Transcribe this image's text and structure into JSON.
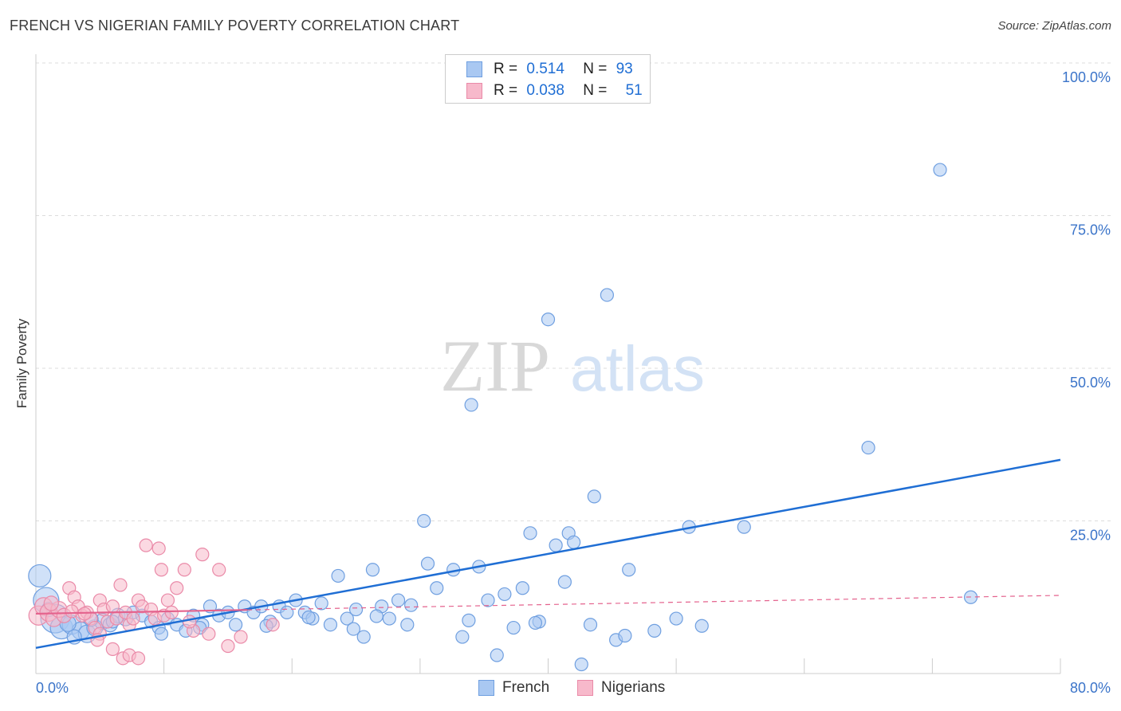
{
  "header": {
    "title": "FRENCH VS NIGERIAN FAMILY POVERTY CORRELATION CHART",
    "source": "Source: ZipAtlas.com"
  },
  "watermark": {
    "zip": "ZIP",
    "atlas": "atlas"
  },
  "legend": {
    "french": {
      "r_label": "R =",
      "r_value": "0.514",
      "n_label": "N =",
      "n_value": "93"
    },
    "nigerians": {
      "r_label": "R =",
      "r_value": "0.038",
      "n_label": "N =",
      "n_value": "51"
    }
  },
  "bottom_legend": {
    "french": "French",
    "nigerians": "Nigerians"
  },
  "colors": {
    "french_fill": "#a9c8f2",
    "french_stroke": "#6f9fe0",
    "french_line": "#1f6ed4",
    "nigerian_fill": "#f7b9cb",
    "nigerian_stroke": "#ea8aa8",
    "nigerian_line": "#e4628d",
    "axis_label": "#3b74c9",
    "grid": "#dddddd"
  },
  "chart_data": {
    "type": "scatter",
    "title": "FRENCH VS NIGERIAN FAMILY POVERTY CORRELATION CHART",
    "xlabel": "",
    "ylabel": "Family Poverty",
    "xlim": [
      0,
      80
    ],
    "ylim": [
      0,
      100
    ],
    "x_tick_labels": [
      "0.0%",
      "80.0%"
    ],
    "y_tick_labels": [
      "100.0%",
      "75.0%",
      "50.0%",
      "25.0%"
    ],
    "y_ticks": [
      100,
      75,
      50,
      25
    ],
    "grid": true,
    "legend_position": "top-center",
    "series": [
      {
        "name": "French",
        "r": 0.514,
        "n": 93,
        "trend": {
          "x": [
            0,
            80
          ],
          "y": [
            4.2,
            35.0
          ]
        },
        "points": [
          [
            0.3,
            16.0,
            14
          ],
          [
            0.8,
            12.0,
            16
          ],
          [
            1.5,
            9.0,
            18
          ],
          [
            2.0,
            7.5,
            14
          ],
          [
            2.8,
            8.0,
            12
          ],
          [
            3.5,
            7.0,
            11
          ],
          [
            4.0,
            6.5,
            11
          ],
          [
            4.6,
            7.5,
            10
          ],
          [
            5.2,
            8.5,
            10
          ],
          [
            5.8,
            8.0,
            9
          ],
          [
            6.4,
            9.5,
            9
          ],
          [
            7.0,
            9.0,
            9
          ],
          [
            7.6,
            10.0,
            8
          ],
          [
            8.3,
            9.5,
            8
          ],
          [
            9.0,
            8.5,
            8
          ],
          [
            9.6,
            7.5,
            8
          ],
          [
            10.3,
            9.0,
            8
          ],
          [
            11.0,
            8.0,
            8
          ],
          [
            11.7,
            7.0,
            8
          ],
          [
            12.3,
            9.5,
            8
          ],
          [
            13.0,
            8.0,
            8
          ],
          [
            13.6,
            11.0,
            8
          ],
          [
            14.3,
            9.5,
            8
          ],
          [
            15.0,
            10.0,
            8
          ],
          [
            15.6,
            8.0,
            8
          ],
          [
            16.3,
            11.0,
            8
          ],
          [
            17.0,
            10.0,
            8
          ],
          [
            17.6,
            11.0,
            8
          ],
          [
            18.3,
            8.5,
            8
          ],
          [
            19.0,
            11.0,
            8
          ],
          [
            19.6,
            10.0,
            8
          ],
          [
            20.3,
            12.0,
            8
          ],
          [
            21.0,
            10.0,
            8
          ],
          [
            21.6,
            9.0,
            8
          ],
          [
            22.3,
            11.5,
            8
          ],
          [
            23.0,
            8.0,
            8
          ],
          [
            23.6,
            16.0,
            8
          ],
          [
            24.3,
            9.0,
            8
          ],
          [
            25.0,
            10.5,
            8
          ],
          [
            25.6,
            6.0,
            8
          ],
          [
            26.3,
            17.0,
            8
          ],
          [
            27.0,
            11.0,
            8
          ],
          [
            27.6,
            9.0,
            8
          ],
          [
            28.3,
            12.0,
            8
          ],
          [
            29.0,
            8.0,
            8
          ],
          [
            30.3,
            25.0,
            8
          ],
          [
            30.6,
            18.0,
            8
          ],
          [
            31.3,
            14.0,
            8
          ],
          [
            32.6,
            17.0,
            8
          ],
          [
            33.3,
            6.0,
            8
          ],
          [
            34.0,
            44.0,
            8
          ],
          [
            34.6,
            17.5,
            8
          ],
          [
            35.3,
            12.0,
            8
          ],
          [
            36.0,
            3.0,
            8
          ],
          [
            36.6,
            13.0,
            8
          ],
          [
            37.3,
            7.5,
            8
          ],
          [
            38.0,
            14.0,
            8
          ],
          [
            38.6,
            23.0,
            8
          ],
          [
            39.3,
            8.5,
            8
          ],
          [
            40.0,
            58.0,
            8
          ],
          [
            40.6,
            21.0,
            8
          ],
          [
            41.3,
            15.0,
            8
          ],
          [
            41.6,
            23.0,
            8
          ],
          [
            42.0,
            21.5,
            8
          ],
          [
            42.6,
            1.5,
            8
          ],
          [
            43.3,
            8.0,
            8
          ],
          [
            43.6,
            29.0,
            8
          ],
          [
            44.6,
            62.0,
            8
          ],
          [
            45.3,
            5.5,
            8
          ],
          [
            46.3,
            17.0,
            8
          ],
          [
            48.3,
            7.0,
            8
          ],
          [
            50.0,
            9.0,
            8
          ],
          [
            51.0,
            24.0,
            8
          ],
          [
            55.3,
            24.0,
            8
          ],
          [
            65.0,
            37.0,
            8
          ],
          [
            70.6,
            82.5,
            8
          ],
          [
            73.0,
            12.5,
            8
          ],
          [
            1.0,
            10.5,
            9
          ],
          [
            3.0,
            6.0,
            9
          ],
          [
            6.0,
            8.5,
            8
          ],
          [
            9.8,
            6.5,
            8
          ],
          [
            12.8,
            7.5,
            8
          ],
          [
            18.0,
            7.8,
            8
          ],
          [
            21.3,
            9.2,
            8
          ],
          [
            24.8,
            7.3,
            8
          ],
          [
            26.6,
            9.4,
            8
          ],
          [
            29.3,
            11.2,
            8
          ],
          [
            33.8,
            8.7,
            8
          ],
          [
            39.0,
            8.3,
            8
          ],
          [
            46.0,
            6.2,
            8
          ],
          [
            52.0,
            7.8,
            8
          ],
          [
            2.5,
            8.2,
            10
          ],
          [
            4.3,
            8.9,
            9
          ]
        ]
      },
      {
        "name": "Nigerians",
        "r": 0.038,
        "n": 51,
        "trend": {
          "x": [
            0,
            80
          ],
          "y": [
            9.8,
            12.8
          ],
          "solid_until_x": 16.5
        },
        "points": [
          [
            0.2,
            9.5,
            12
          ],
          [
            0.6,
            11.0,
            11
          ],
          [
            1.0,
            10.0,
            11
          ],
          [
            1.4,
            9.0,
            10
          ],
          [
            1.8,
            10.5,
            10
          ],
          [
            2.2,
            9.5,
            9
          ],
          [
            2.6,
            14.0,
            8
          ],
          [
            3.0,
            12.5,
            8
          ],
          [
            3.3,
            11.0,
            8
          ],
          [
            3.6,
            9.5,
            8
          ],
          [
            4.0,
            10.0,
            8
          ],
          [
            4.3,
            9.0,
            8
          ],
          [
            4.6,
            7.5,
            8
          ],
          [
            5.0,
            12.0,
            8
          ],
          [
            5.3,
            10.5,
            8
          ],
          [
            5.6,
            8.5,
            8
          ],
          [
            6.0,
            11.0,
            8
          ],
          [
            6.3,
            9.0,
            8
          ],
          [
            6.6,
            14.5,
            8
          ],
          [
            7.0,
            10.0,
            8
          ],
          [
            7.3,
            8.0,
            8
          ],
          [
            7.6,
            9.0,
            8
          ],
          [
            8.0,
            12.0,
            8
          ],
          [
            8.3,
            11.0,
            8
          ],
          [
            8.6,
            21.0,
            8
          ],
          [
            9.0,
            10.5,
            8
          ],
          [
            9.3,
            9.0,
            8
          ],
          [
            9.6,
            20.5,
            8
          ],
          [
            10.0,
            9.5,
            8
          ],
          [
            10.3,
            12.0,
            8
          ],
          [
            10.6,
            10.0,
            8
          ],
          [
            11.0,
            14.0,
            8
          ],
          [
            11.6,
            17.0,
            8
          ],
          [
            12.3,
            7.0,
            8
          ],
          [
            13.0,
            19.5,
            8
          ],
          [
            14.3,
            17.0,
            8
          ],
          [
            15.0,
            4.5,
            8
          ],
          [
            6.0,
            4.0,
            8
          ],
          [
            6.8,
            2.5,
            8
          ],
          [
            7.3,
            3.0,
            8
          ],
          [
            8.0,
            2.5,
            8
          ],
          [
            5.0,
            6.5,
            8
          ],
          [
            3.8,
            9.8,
            8
          ],
          [
            2.8,
            10.2,
            8
          ],
          [
            4.8,
            5.5,
            8
          ],
          [
            12.0,
            8.5,
            8
          ],
          [
            16.0,
            6.0,
            8
          ],
          [
            18.5,
            8.0,
            8
          ],
          [
            13.5,
            6.5,
            8
          ],
          [
            9.8,
            17.0,
            8
          ],
          [
            1.2,
            11.5,
            9
          ]
        ]
      }
    ]
  }
}
